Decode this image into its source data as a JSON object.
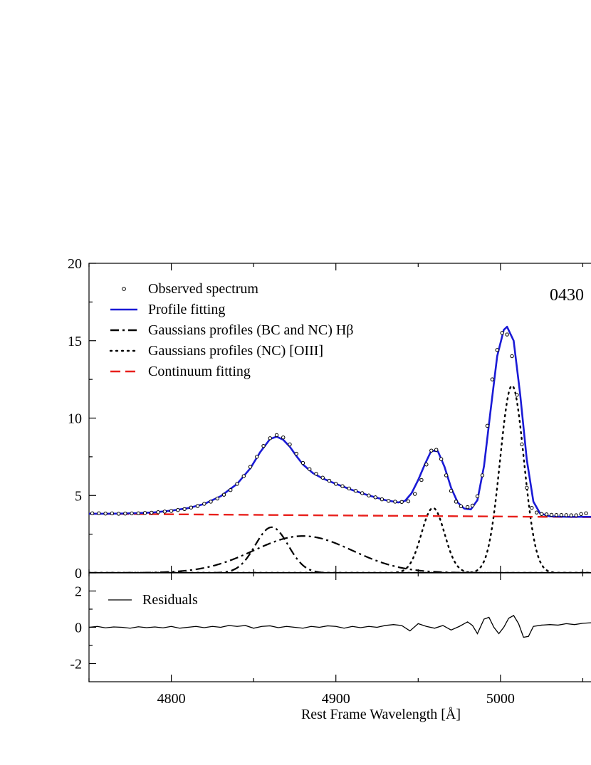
{
  "chart_data": [
    {
      "type": "line",
      "panel": "main",
      "annotation": "0430",
      "xlim": [
        4750,
        5055
      ],
      "ylim": [
        0,
        20
      ],
      "yticks": [
        0,
        5,
        10,
        15,
        20
      ],
      "xticks": [
        4800,
        4900,
        5000
      ],
      "grid": false,
      "legend_position": "top-left",
      "legend": [
        {
          "label": "Observed spectrum",
          "style": "open-circle"
        },
        {
          "label": "Profile fitting",
          "style": "solid-blue"
        },
        {
          "label": "Gaussians profiles (BC and NC) Hβ",
          "style": "dash-dot-black"
        },
        {
          "label": "Gaussians profiles (NC) [OIII]",
          "style": "dotted-black"
        },
        {
          "label": "Continuum fitting",
          "style": "dashed-red"
        }
      ],
      "colors": {
        "observed": "#000000",
        "profile": "#1a1ad6",
        "continuum": "#e8201c",
        "components": "#000000"
      },
      "series": [
        {
          "name": "Observed spectrum",
          "points": [
            [
              4752,
              3.85
            ],
            [
              4756,
              3.85
            ],
            [
              4760,
              3.83
            ],
            [
              4764,
              3.84
            ],
            [
              4768,
              3.82
            ],
            [
              4772,
              3.83
            ],
            [
              4776,
              3.84
            ],
            [
              4780,
              3.85
            ],
            [
              4784,
              3.87
            ],
            [
              4788,
              3.89
            ],
            [
              4792,
              3.92
            ],
            [
              4796,
              3.96
            ],
            [
              4800,
              4.0
            ],
            [
              4804,
              4.06
            ],
            [
              4808,
              4.12
            ],
            [
              4812,
              4.22
            ],
            [
              4816,
              4.32
            ],
            [
              4820,
              4.46
            ],
            [
              4824,
              4.6
            ],
            [
              4828,
              4.8
            ],
            [
              4832,
              5.05
            ],
            [
              4836,
              5.35
            ],
            [
              4840,
              5.75
            ],
            [
              4844,
              6.25
            ],
            [
              4848,
              6.85
            ],
            [
              4852,
              7.5
            ],
            [
              4856,
              8.2
            ],
            [
              4860,
              8.7
            ],
            [
              4864,
              8.9
            ],
            [
              4868,
              8.75
            ],
            [
              4872,
              8.3
            ],
            [
              4876,
              7.7
            ],
            [
              4880,
              7.1
            ],
            [
              4884,
              6.7
            ],
            [
              4888,
              6.4
            ],
            [
              4892,
              6.15
            ],
            [
              4896,
              5.95
            ],
            [
              4900,
              5.75
            ],
            [
              4904,
              5.6
            ],
            [
              4908,
              5.45
            ],
            [
              4912,
              5.3
            ],
            [
              4916,
              5.15
            ],
            [
              4920,
              5.0
            ],
            [
              4924,
              4.88
            ],
            [
              4928,
              4.75
            ],
            [
              4932,
              4.65
            ],
            [
              4936,
              4.6
            ],
            [
              4940,
              4.58
            ],
            [
              4944,
              4.62
            ],
            [
              4948,
              5.1
            ],
            [
              4952,
              6.0
            ],
            [
              4955,
              7.0
            ],
            [
              4958,
              7.9
            ],
            [
              4961,
              7.95
            ],
            [
              4964,
              7.35
            ],
            [
              4967,
              6.3
            ],
            [
              4970,
              5.3
            ],
            [
              4973,
              4.6
            ],
            [
              4976,
              4.3
            ],
            [
              4980,
              4.25
            ],
            [
              4983,
              4.35
            ],
            [
              4986,
              4.95
            ],
            [
              4989,
              6.3
            ],
            [
              4992,
              9.5
            ],
            [
              4995,
              12.5
            ],
            [
              4998,
              14.4
            ],
            [
              5001,
              15.5
            ],
            [
              5004,
              15.4
            ],
            [
              5007,
              14.0
            ],
            [
              5010,
              11.5
            ],
            [
              5013,
              8.3
            ],
            [
              5016,
              5.5
            ],
            [
              5019,
              4.2
            ],
            [
              5022,
              3.9
            ],
            [
              5025,
              3.8
            ],
            [
              5028,
              3.78
            ],
            [
              5031,
              3.75
            ],
            [
              5034,
              3.74
            ],
            [
              5037,
              3.74
            ],
            [
              5040,
              3.73
            ],
            [
              5043,
              3.72
            ],
            [
              5046,
              3.72
            ],
            [
              5049,
              3.8
            ],
            [
              5052,
              3.85
            ]
          ]
        },
        {
          "name": "Profile fitting",
          "points": [
            [
              4750,
              3.82
            ],
            [
              4760,
              3.82
            ],
            [
              4770,
              3.83
            ],
            [
              4780,
              3.86
            ],
            [
              4790,
              3.91
            ],
            [
              4800,
              4.02
            ],
            [
              4810,
              4.18
            ],
            [
              4820,
              4.45
            ],
            [
              4830,
              4.95
            ],
            [
              4840,
              5.75
            ],
            [
              4848,
              6.75
            ],
            [
              4854,
              7.8
            ],
            [
              4860,
              8.65
            ],
            [
              4864,
              8.8
            ],
            [
              4868,
              8.6
            ],
            [
              4872,
              8.15
            ],
            [
              4876,
              7.55
            ],
            [
              4880,
              7.0
            ],
            [
              4886,
              6.45
            ],
            [
              4892,
              6.1
            ],
            [
              4900,
              5.75
            ],
            [
              4910,
              5.35
            ],
            [
              4920,
              5.0
            ],
            [
              4930,
              4.7
            ],
            [
              4938,
              4.55
            ],
            [
              4942,
              4.65
            ],
            [
              4946,
              5.15
            ],
            [
              4950,
              6.0
            ],
            [
              4954,
              7.0
            ],
            [
              4958,
              7.9
            ],
            [
              4962,
              7.85
            ],
            [
              4966,
              6.85
            ],
            [
              4970,
              5.5
            ],
            [
              4974,
              4.55
            ],
            [
              4978,
              4.15
            ],
            [
              4982,
              4.1
            ],
            [
              4986,
              4.7
            ],
            [
              4990,
              6.9
            ],
            [
              4994,
              10.5
            ],
            [
              4998,
              14.0
            ],
            [
              5002,
              15.7
            ],
            [
              5004,
              15.9
            ],
            [
              5008,
              15.0
            ],
            [
              5012,
              11.5
            ],
            [
              5016,
              7.3
            ],
            [
              5020,
              4.6
            ],
            [
              5024,
              3.85
            ],
            [
              5030,
              3.65
            ],
            [
              5040,
              3.62
            ],
            [
              5055,
              3.62
            ]
          ]
        },
        {
          "name": "Gaussians profiles (BC and NC) Hβ",
          "components": [
            {
              "center": 4861,
              "amplitude": 2.95,
              "sigma": 10
            },
            {
              "center": 4880,
              "amplitude": 2.38,
              "sigma": 30
            }
          ]
        },
        {
          "name": "Gaussians profiles (NC) [OIII]",
          "components": [
            {
              "center": 4959,
              "amplitude": 4.2,
              "sigma": 7
            },
            {
              "center": 5007,
              "amplitude": 12.1,
              "sigma": 7.2
            }
          ]
        },
        {
          "name": "Continuum fitting",
          "points": [
            [
              4750,
              3.82
            ],
            [
              5055,
              3.6
            ]
          ]
        }
      ]
    },
    {
      "type": "line",
      "panel": "residuals",
      "xlabel": "Rest Frame Wavelength [Å]",
      "xlim": [
        4750,
        5055
      ],
      "ylim": [
        -3,
        3
      ],
      "yticks": [
        -2,
        0,
        2
      ],
      "xticks": [
        4800,
        4900,
        5000
      ],
      "legend": [
        {
          "label": "Residuals",
          "style": "solid-black"
        }
      ],
      "series": [
        {
          "name": "Residuals",
          "points": [
            [
              4750,
              0.0
            ],
            [
              4755,
              0.05
            ],
            [
              4760,
              -0.03
            ],
            [
              4765,
              0.02
            ],
            [
              4770,
              0.0
            ],
            [
              4775,
              -0.05
            ],
            [
              4780,
              0.03
            ],
            [
              4785,
              -0.02
            ],
            [
              4790,
              0.02
            ],
            [
              4795,
              -0.03
            ],
            [
              4800,
              0.05
            ],
            [
              4805,
              -0.05
            ],
            [
              4810,
              0.0
            ],
            [
              4815,
              0.05
            ],
            [
              4820,
              -0.02
            ],
            [
              4825,
              0.05
            ],
            [
              4830,
              0.0
            ],
            [
              4835,
              0.1
            ],
            [
              4840,
              0.05
            ],
            [
              4845,
              0.1
            ],
            [
              4850,
              -0.05
            ],
            [
              4855,
              0.05
            ],
            [
              4860,
              0.08
            ],
            [
              4865,
              -0.02
            ],
            [
              4870,
              0.05
            ],
            [
              4875,
              0.0
            ],
            [
              4880,
              -0.05
            ],
            [
              4885,
              0.05
            ],
            [
              4890,
              0.0
            ],
            [
              4895,
              0.08
            ],
            [
              4900,
              0.05
            ],
            [
              4905,
              -0.05
            ],
            [
              4910,
              0.05
            ],
            [
              4915,
              -0.02
            ],
            [
              4920,
              0.05
            ],
            [
              4925,
              0.0
            ],
            [
              4930,
              0.1
            ],
            [
              4935,
              0.15
            ],
            [
              4940,
              0.1
            ],
            [
              4945,
              -0.2
            ],
            [
              4950,
              0.2
            ],
            [
              4955,
              0.05
            ],
            [
              4960,
              -0.05
            ],
            [
              4965,
              0.1
            ],
            [
              4970,
              -0.15
            ],
            [
              4975,
              0.05
            ],
            [
              4980,
              0.3
            ],
            [
              4983,
              0.1
            ],
            [
              4986,
              -0.35
            ],
            [
              4990,
              0.45
            ],
            [
              4993,
              0.55
            ],
            [
              4996,
              0.0
            ],
            [
              4999,
              -0.35
            ],
            [
              5002,
              0.0
            ],
            [
              5005,
              0.5
            ],
            [
              5008,
              0.65
            ],
            [
              5011,
              0.2
            ],
            [
              5014,
              -0.55
            ],
            [
              5017,
              -0.5
            ],
            [
              5020,
              0.05
            ],
            [
              5025,
              0.12
            ],
            [
              5030,
              0.15
            ],
            [
              5035,
              0.12
            ],
            [
              5040,
              0.2
            ],
            [
              5045,
              0.15
            ],
            [
              5050,
              0.22
            ],
            [
              5055,
              0.25
            ]
          ]
        }
      ]
    }
  ]
}
